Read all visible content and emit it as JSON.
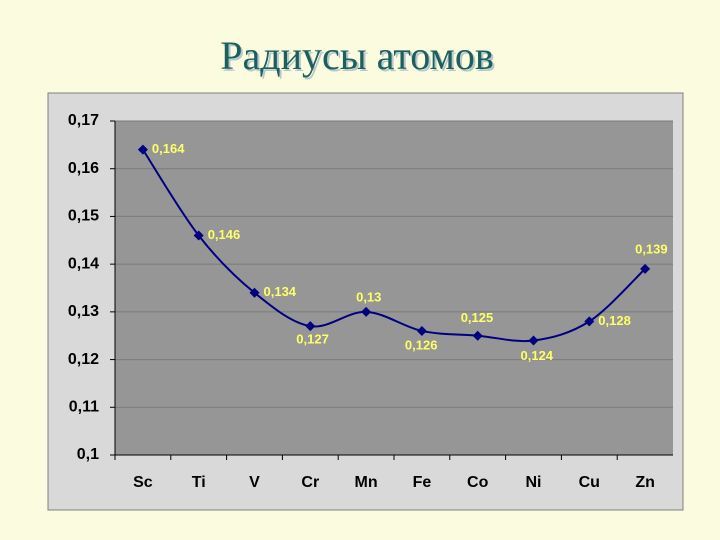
{
  "chart_data": {
    "type": "line",
    "title": "Радиусы атомов",
    "categories": [
      "Sc",
      "Ti",
      "V",
      "Cr",
      "Mn",
      "Fe",
      "Co",
      "Ni",
      "Cu",
      "Zn"
    ],
    "series": [
      {
        "name": "Радиусы атомов",
        "color": "#000080",
        "values": [
          0.164,
          0.146,
          0.134,
          0.127,
          0.13,
          0.126,
          0.125,
          0.124,
          0.128,
          0.139
        ],
        "value_labels": [
          "0,164",
          "0,146",
          "0,134",
          "0,127",
          "0,13",
          "0,126",
          "0,125",
          "0,124",
          "0,128",
          "0,139"
        ]
      }
    ],
    "ylim": [
      0.1,
      0.17
    ],
    "yticks": [
      {
        "value": 0.1,
        "label": "0,1"
      },
      {
        "value": 0.11,
        "label": "0,11"
      },
      {
        "value": 0.12,
        "label": "0,12"
      },
      {
        "value": 0.13,
        "label": "0,13"
      },
      {
        "value": 0.14,
        "label": "0,14"
      },
      {
        "value": 0.15,
        "label": "0,15"
      },
      {
        "value": 0.16,
        "label": "0,16"
      },
      {
        "value": 0.17,
        "label": "0,17"
      }
    ],
    "grid": true,
    "smooth": true
  }
}
